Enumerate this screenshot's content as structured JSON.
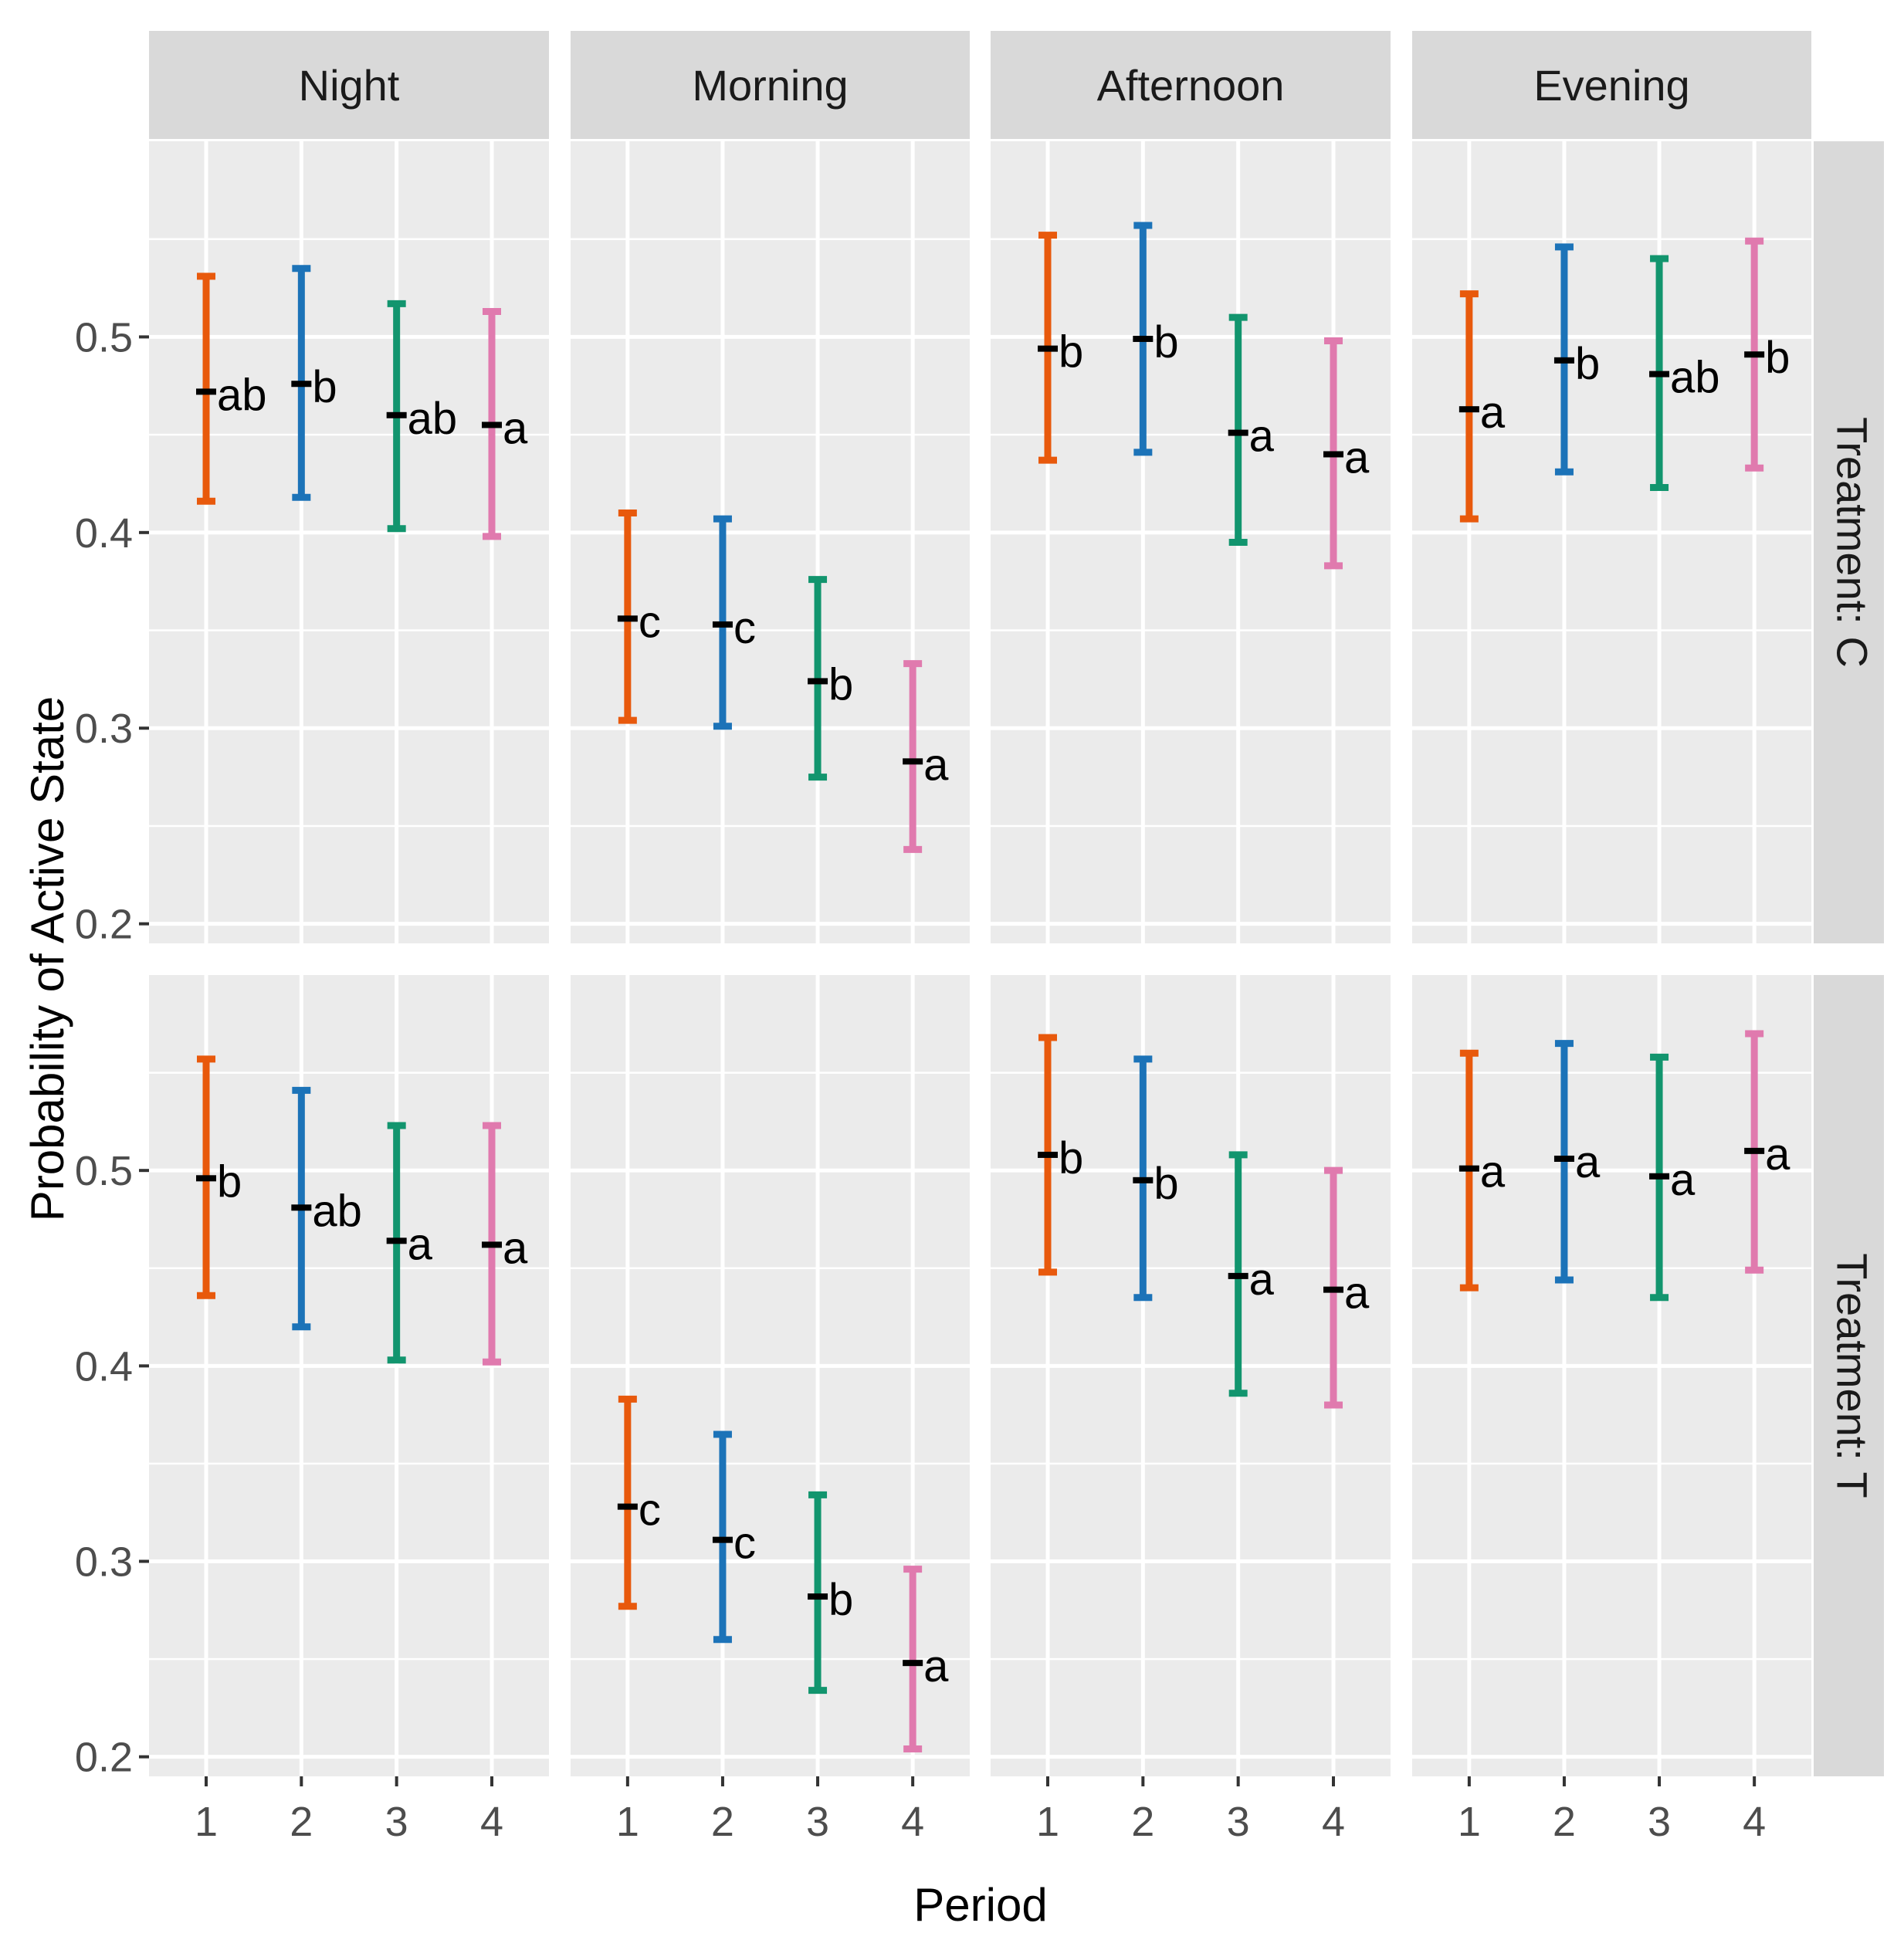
{
  "chart_data": {
    "type": "errorbar",
    "xlabel": "Period",
    "ylabel": "Probability of Active State",
    "x_ticks": [
      "1",
      "2",
      "3",
      "4"
    ],
    "y_ticks": [
      "0.2",
      "0.3",
      "0.4",
      "0.5"
    ],
    "ylim": [
      0.19,
      0.6
    ],
    "columns": [
      "Night",
      "Morning",
      "Afternoon",
      "Evening"
    ],
    "rows": [
      "Treatment: C",
      "Treatment: T"
    ],
    "series_colors": [
      "#E8590C",
      "#1C73B8",
      "#12956E",
      "#E07AAE"
    ],
    "panels": [
      {
        "row": "Treatment: C",
        "col": "Night",
        "points": [
          {
            "period": 1,
            "mean": 0.472,
            "lower": 0.416,
            "upper": 0.531,
            "label": "ab"
          },
          {
            "period": 2,
            "mean": 0.476,
            "lower": 0.418,
            "upper": 0.535,
            "label": "b"
          },
          {
            "period": 3,
            "mean": 0.46,
            "lower": 0.402,
            "upper": 0.517,
            "label": "ab"
          },
          {
            "period": 4,
            "mean": 0.455,
            "lower": 0.398,
            "upper": 0.513,
            "label": "a"
          }
        ]
      },
      {
        "row": "Treatment: C",
        "col": "Morning",
        "points": [
          {
            "period": 1,
            "mean": 0.356,
            "lower": 0.304,
            "upper": 0.41,
            "label": "c"
          },
          {
            "period": 2,
            "mean": 0.353,
            "lower": 0.301,
            "upper": 0.407,
            "label": "c"
          },
          {
            "period": 3,
            "mean": 0.324,
            "lower": 0.275,
            "upper": 0.376,
            "label": "b"
          },
          {
            "period": 4,
            "mean": 0.283,
            "lower": 0.238,
            "upper": 0.333,
            "label": "a"
          }
        ]
      },
      {
        "row": "Treatment: C",
        "col": "Afternoon",
        "points": [
          {
            "period": 1,
            "mean": 0.494,
            "lower": 0.437,
            "upper": 0.552,
            "label": "b"
          },
          {
            "period": 2,
            "mean": 0.499,
            "lower": 0.441,
            "upper": 0.557,
            "label": "b"
          },
          {
            "period": 3,
            "mean": 0.451,
            "lower": 0.395,
            "upper": 0.51,
            "label": "a"
          },
          {
            "period": 4,
            "mean": 0.44,
            "lower": 0.383,
            "upper": 0.498,
            "label": "a"
          }
        ]
      },
      {
        "row": "Treatment: C",
        "col": "Evening",
        "points": [
          {
            "period": 1,
            "mean": 0.463,
            "lower": 0.407,
            "upper": 0.522,
            "label": "a"
          },
          {
            "period": 2,
            "mean": 0.488,
            "lower": 0.431,
            "upper": 0.546,
            "label": "b"
          },
          {
            "period": 3,
            "mean": 0.481,
            "lower": 0.423,
            "upper": 0.54,
            "label": "ab"
          },
          {
            "period": 4,
            "mean": 0.491,
            "lower": 0.433,
            "upper": 0.549,
            "label": "b"
          }
        ]
      },
      {
        "row": "Treatment: T",
        "col": "Night",
        "points": [
          {
            "period": 1,
            "mean": 0.496,
            "lower": 0.436,
            "upper": 0.557,
            "label": "b"
          },
          {
            "period": 2,
            "mean": 0.481,
            "lower": 0.42,
            "upper": 0.541,
            "label": "ab"
          },
          {
            "period": 3,
            "mean": 0.464,
            "lower": 0.403,
            "upper": 0.523,
            "label": "a"
          },
          {
            "period": 4,
            "mean": 0.462,
            "lower": 0.402,
            "upper": 0.523,
            "label": "a"
          }
        ]
      },
      {
        "row": "Treatment: T",
        "col": "Morning",
        "points": [
          {
            "period": 1,
            "mean": 0.328,
            "lower": 0.277,
            "upper": 0.383,
            "label": "c"
          },
          {
            "period": 2,
            "mean": 0.311,
            "lower": 0.26,
            "upper": 0.365,
            "label": "c"
          },
          {
            "period": 3,
            "mean": 0.282,
            "lower": 0.234,
            "upper": 0.334,
            "label": "b"
          },
          {
            "period": 4,
            "mean": 0.248,
            "lower": 0.204,
            "upper": 0.296,
            "label": "a"
          }
        ]
      },
      {
        "row": "Treatment: T",
        "col": "Afternoon",
        "points": [
          {
            "period": 1,
            "mean": 0.508,
            "lower": 0.448,
            "upper": 0.568,
            "label": "b"
          },
          {
            "period": 2,
            "mean": 0.495,
            "lower": 0.435,
            "upper": 0.557,
            "label": "b"
          },
          {
            "period": 3,
            "mean": 0.446,
            "lower": 0.386,
            "upper": 0.508,
            "label": "a"
          },
          {
            "period": 4,
            "mean": 0.439,
            "lower": 0.38,
            "upper": 0.5,
            "label": "a"
          }
        ]
      },
      {
        "row": "Treatment: T",
        "col": "Evening",
        "points": [
          {
            "period": 1,
            "mean": 0.501,
            "lower": 0.44,
            "upper": 0.56,
            "label": "a"
          },
          {
            "period": 2,
            "mean": 0.506,
            "lower": 0.444,
            "upper": 0.565,
            "label": "a"
          },
          {
            "period": 3,
            "mean": 0.497,
            "lower": 0.435,
            "upper": 0.558,
            "label": "a"
          },
          {
            "period": 4,
            "mean": 0.51,
            "lower": 0.449,
            "upper": 0.57,
            "label": "a"
          }
        ]
      }
    ]
  }
}
